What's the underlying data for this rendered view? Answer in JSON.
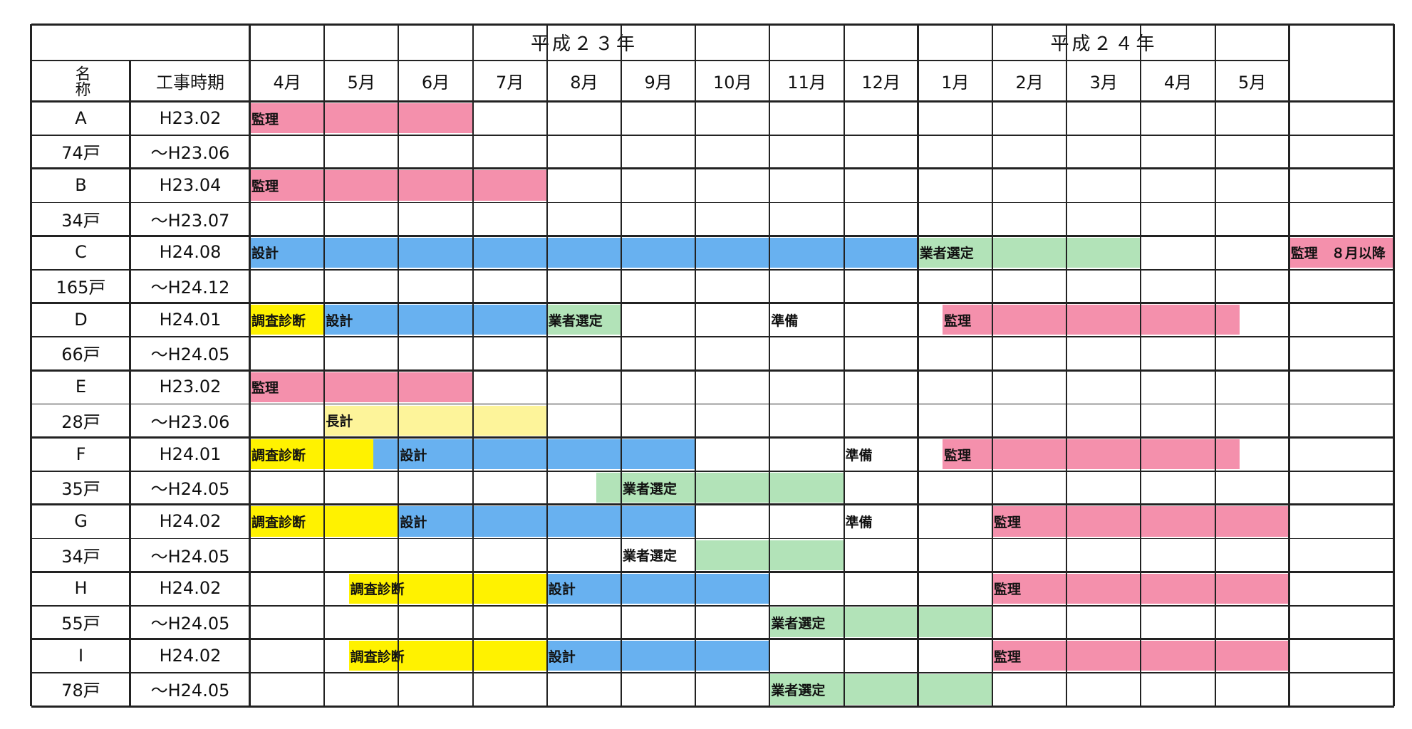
{
  "header": {
    "name_label": "名称",
    "period_label": "工事時期",
    "years": [
      {
        "label": "平成２３年",
        "months": [
          "4月",
          "5月",
          "6月",
          "7月",
          "8月",
          "9月",
          "10月",
          "11月",
          "12月"
        ]
      },
      {
        "label": "平成２４年",
        "months": [
          "1月",
          "2月",
          "3月",
          "4月",
          "5月"
        ]
      }
    ]
  },
  "colors": {
    "監理": "#f490ac",
    "設計": "#68b1f0",
    "業者選定": "#b2e3b8",
    "調査診断": "#fff200",
    "長計": "#fdf49a"
  },
  "projects": [
    {
      "name": "A",
      "units": "74戸",
      "start": "H23.02",
      "end": "～H23.06"
    },
    {
      "name": "B",
      "units": "34戸",
      "start": "H23.04",
      "end": "～H23.07"
    },
    {
      "name": "C",
      "units": "165戸",
      "start": "H24.08",
      "end": "～H24.12"
    },
    {
      "name": "D",
      "units": "66戸",
      "start": "H24.01",
      "end": "～H24.05"
    },
    {
      "name": "E",
      "units": "28戸",
      "start": "H23.02",
      "end": "～H23.06"
    },
    {
      "name": "F",
      "units": "35戸",
      "start": "H24.01",
      "end": "～H24.05"
    },
    {
      "name": "G",
      "units": "34戸",
      "start": "H24.02",
      "end": "～H24.05"
    },
    {
      "name": "H",
      "units": "55戸",
      "start": "H24.02",
      "end": "～H24.05"
    },
    {
      "name": "I",
      "units": "78戸",
      "start": "H24.02",
      "end": "～H24.05"
    }
  ],
  "bars": [
    {
      "project": 0,
      "line": 0,
      "from": 0,
      "to": 3,
      "kind": "監理",
      "label": "監理"
    },
    {
      "project": 1,
      "line": 0,
      "from": 0,
      "to": 4,
      "kind": "監理",
      "label": "監理"
    },
    {
      "project": 2,
      "line": 0,
      "from": 0,
      "to": 9,
      "kind": "設計",
      "label": "設計"
    },
    {
      "project": 2,
      "line": 0,
      "from": 9,
      "to": 12,
      "kind": "業者選定",
      "label": "業者選定"
    },
    {
      "project": 2,
      "line": 0,
      "from": 14,
      "to": 16,
      "kind": "監理",
      "label": "監理　８月以降"
    },
    {
      "project": 3,
      "line": 0,
      "from": 0,
      "to": 1,
      "kind": "調査診断",
      "label": "調査診断"
    },
    {
      "project": 3,
      "line": 0,
      "from": 1,
      "to": 4,
      "kind": "設計",
      "label": "設計"
    },
    {
      "project": 3,
      "line": 0,
      "from": 4,
      "to": 5,
      "kind": "業者選定",
      "label": "業者選定"
    },
    {
      "project": 3,
      "line": 0,
      "from": 9.33,
      "to": 13.33,
      "kind": "監理",
      "label": "監理"
    },
    {
      "project": 4,
      "line": 0,
      "from": 0,
      "to": 3,
      "kind": "監理",
      "label": "監理"
    },
    {
      "project": 4,
      "line": 1,
      "from": 1,
      "to": 4,
      "kind": "長計",
      "label": "長計"
    },
    {
      "project": 5,
      "line": 0,
      "from": 0,
      "to": 1.66,
      "kind": "調査診断",
      "label": "調査診断"
    },
    {
      "project": 5,
      "line": 0,
      "from": 1.66,
      "to": 6,
      "kind": "設計",
      "label": "設計",
      "label_at": 2
    },
    {
      "project": 5,
      "line": 0,
      "from": 9.33,
      "to": 13.33,
      "kind": "監理",
      "label": "監理"
    },
    {
      "project": 5,
      "line": 1,
      "from": 4.66,
      "to": 8,
      "kind": "業者選定",
      "label": "業者選定",
      "label_at": 5
    },
    {
      "project": 6,
      "line": 0,
      "from": 0,
      "to": 2,
      "kind": "調査診断",
      "label": "調査診断"
    },
    {
      "project": 6,
      "line": 0,
      "from": 2,
      "to": 6,
      "kind": "設計",
      "label": "設計"
    },
    {
      "project": 6,
      "line": 0,
      "from": 10,
      "to": 14,
      "kind": "監理",
      "label": "監理"
    },
    {
      "project": 6,
      "line": 1,
      "from": 6,
      "to": 8,
      "kind": "業者選定",
      "label": "業者選定",
      "label_at": 5
    },
    {
      "project": 7,
      "line": 0,
      "from": 1.33,
      "to": 4,
      "kind": "調査診断",
      "label": "調査診断"
    },
    {
      "project": 7,
      "line": 0,
      "from": 4,
      "to": 7,
      "kind": "設計",
      "label": "設計"
    },
    {
      "project": 7,
      "line": 0,
      "from": 10,
      "to": 14,
      "kind": "監理",
      "label": "監理"
    },
    {
      "project": 7,
      "line": 1,
      "from": 7,
      "to": 10,
      "kind": "業者選定",
      "label": "業者選定"
    },
    {
      "project": 8,
      "line": 0,
      "from": 1.33,
      "to": 4,
      "kind": "調査診断",
      "label": "調査診断"
    },
    {
      "project": 8,
      "line": 0,
      "from": 4,
      "to": 7,
      "kind": "設計",
      "label": "設計"
    },
    {
      "project": 8,
      "line": 0,
      "from": 10,
      "to": 14,
      "kind": "監理",
      "label": "監理"
    },
    {
      "project": 8,
      "line": 1,
      "from": 7,
      "to": 10,
      "kind": "業者選定",
      "label": "業者選定"
    }
  ],
  "notes": [
    {
      "project": 3,
      "line": 0,
      "at": 7,
      "label": "準備"
    },
    {
      "project": 5,
      "line": 0,
      "at": 8,
      "label": "準備"
    },
    {
      "project": 6,
      "line": 0,
      "at": 8,
      "label": "準備"
    }
  ]
}
